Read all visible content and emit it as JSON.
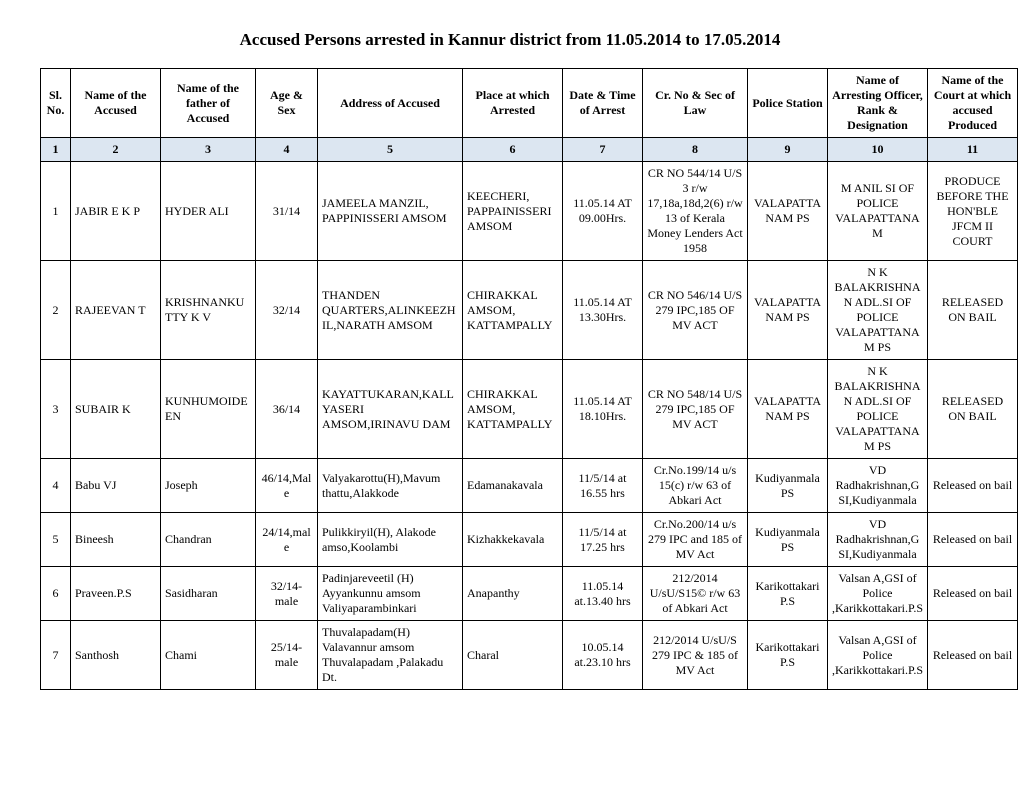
{
  "title": "Accused Persons arrested in  Kannur district from  11.05.2014 to 17.05.2014",
  "headers": {
    "h1": "Sl. No.",
    "h2": "Name of the Accused",
    "h3": "Name of the father of Accused",
    "h4": "Age & Sex",
    "h5": "Address of Accused",
    "h6": "Place at which Arrested",
    "h7": "Date & Time of Arrest",
    "h8": "Cr. No & Sec of Law",
    "h9": "Police Station",
    "h10": "Name of Arresting Officer, Rank & Designation",
    "h11": "Name of the Court at which accused Produced"
  },
  "colnums": [
    "1",
    "2",
    "3",
    "4",
    "5",
    "6",
    "7",
    "8",
    "9",
    "10",
    "11"
  ],
  "rows": [
    {
      "sl": "1",
      "name": "JABIR E K P",
      "father": "HYDER ALI",
      "age": "31/14",
      "address": "JAMEELA MANZIL, PAPPINISSERI AMSOM",
      "place": "KEECHERI, PAPPAINISSERI AMSOM",
      "datetime": "11.05.14 AT 09.00Hrs.",
      "crno": "CR NO 544/14 U/S 3 r/w 17,18a,18d,2(6) r/w 13 of Kerala Money Lenders Act 1958",
      "station": "VALAPATTANAM PS",
      "officer": "M ANIL   SI OF POLICE VALAPATTANAM",
      "court": "PRODUCE BEFORE THE HON'BLE JFCM II COURT"
    },
    {
      "sl": "2",
      "name": "RAJEEVAN T",
      "father": "KRISHNANKUTTY K V",
      "age": "32/14",
      "address": "THANDEN QUARTERS,ALINKEEZHIL,NARATH AMSOM",
      "place": "CHIRAKKAL AMSOM, KATTAMPALLY",
      "datetime": "11.05.14 AT 13.30Hrs.",
      "crno": "CR NO 546/14 U/S 279 IPC,185 OF MV ACT",
      "station": "VALAPATTANAM PS",
      "officer": "N K BALAKRISHNAN ADL.SI OF POLICE VALAPATTANAM PS",
      "court": "RELEASED ON BAIL"
    },
    {
      "sl": "3",
      "name": "SUBAIR K",
      "father": "KUNHUMOIDEEN",
      "age": "36/14",
      "address": "KAYATTUKARAN,KALLYASERI AMSOM,IRINAVU DAM",
      "place": "CHIRAKKAL AMSOM, KATTAMPALLY",
      "datetime": "11.05.14 AT 18.10Hrs.",
      "crno": "CR NO 548/14 U/S 279 IPC,185 OF MV ACT",
      "station": "VALAPATTANAM PS",
      "officer": "N K BALAKRISHNAN ADL.SI OF POLICE VALAPATTANAM PS",
      "court": "RELEASED ON BAIL"
    },
    {
      "sl": "4",
      "name": "Babu VJ",
      "father": "Joseph",
      "age": "46/14,Male",
      "address": "Valyakarottu(H),Mavum thattu,Alakkode",
      "place": "Edamanakavala",
      "datetime": "11/5/14 at 16.55 hrs",
      "crno": "Cr.No.199/14 u/s 15(c) r/w 63 of Abkari Act",
      "station": "Kudiyanmala PS",
      "officer": "VD Radhakrishnan,G SI,Kudiyanmala",
      "court": "Released on bail"
    },
    {
      "sl": "5",
      "name": "Bineesh",
      "father": "Chandran",
      "age": "24/14,male",
      "address": "Pulikkiryil(H), Alakode amso,Koolambi",
      "place": "Kizhakkekavala",
      "datetime": "11/5/14 at 17.25  hrs",
      "crno": "Cr.No.200/14 u/s 279 IPC and 185 of MV Act",
      "station": "Kudiyanmala PS",
      "officer": "VD Radhakrishnan,G SI,Kudiyanmala",
      "court": "Released on bail"
    },
    {
      "sl": "6",
      "name": "Praveen.P.S",
      "father": "Sasidharan",
      "age": "32/14-male",
      "address": "Padinjareveetil (H) Ayyankunnu  amsom Valiyaparambinkari",
      "place": "Anapanthy",
      "datetime": "11.05.14 at.13.40 hrs",
      "crno": "212/2014 U/sU/S15© r/w 63 of Abkari Act",
      "station": "Karikottakari P.S",
      "officer": "Valsan A,GSI of Police ,Karikkottakari.P.S",
      "court": "Released on bail"
    },
    {
      "sl": "7",
      "name": "Santhosh",
      "father": "Chami",
      "age": "25/14-male",
      "address": "Thuvalapadam(H) Valavannur  amsom Thuvalapadam ,Palakadu Dt.",
      "place": "Charal",
      "datetime": "10.05.14 at.23.10 hrs",
      "crno": "212/2014 U/sU/S 279 IPC & 185 of MV Act",
      "station": "Karikottakari P.S",
      "officer": "Valsan A,GSI of Police ,Karikkottakari.P.S",
      "court": "Released on bail"
    }
  ]
}
